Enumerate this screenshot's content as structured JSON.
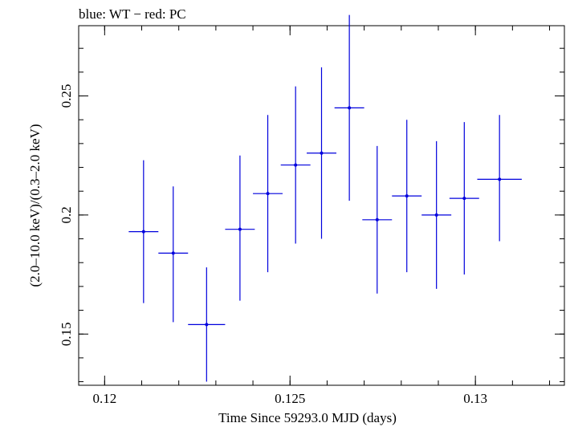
{
  "chart_data": {
    "type": "scatter",
    "title": "blue: WT − red: PC",
    "xlabel": "Time Since 59293.0 MJD (days)",
    "ylabel": "(2.0–10.0 keV)/(0.3–2.0 keV)",
    "xlim": [
      0.1193,
      0.1324
    ],
    "ylim": [
      0.1285,
      0.2795
    ],
    "x_ticks": [
      {
        "value": 0.12,
        "label": "0.12"
      },
      {
        "value": 0.125,
        "label": "0.125"
      },
      {
        "value": 0.13,
        "label": "0.13"
      }
    ],
    "y_ticks": [
      {
        "value": 0.15,
        "label": "0.15"
      },
      {
        "value": 0.2,
        "label": "0.2"
      },
      {
        "value": 0.25,
        "label": "0.25"
      }
    ],
    "x_minor_step": 0.001,
    "y_minor_step": 0.01,
    "series": [
      {
        "color": "#0000dd",
        "points": [
          {
            "x": 0.12105,
            "xerr": 0.0004,
            "y": 0.193,
            "ylo": 0.163,
            "yhi": 0.223
          },
          {
            "x": 0.12185,
            "xerr": 0.0004,
            "y": 0.184,
            "ylo": 0.155,
            "yhi": 0.212
          },
          {
            "x": 0.12275,
            "xerr": 0.0005,
            "y": 0.154,
            "ylo": 0.13,
            "yhi": 0.178
          },
          {
            "x": 0.12365,
            "xerr": 0.0004,
            "y": 0.194,
            "ylo": 0.164,
            "yhi": 0.225
          },
          {
            "x": 0.1244,
            "xerr": 0.0004,
            "y": 0.209,
            "ylo": 0.176,
            "yhi": 0.242
          },
          {
            "x": 0.12515,
            "xerr": 0.0004,
            "y": 0.221,
            "ylo": 0.188,
            "yhi": 0.254
          },
          {
            "x": 0.12585,
            "xerr": 0.0004,
            "y": 0.226,
            "ylo": 0.19,
            "yhi": 0.262
          },
          {
            "x": 0.1266,
            "xerr": 0.0004,
            "y": 0.245,
            "ylo": 0.206,
            "yhi": 0.284
          },
          {
            "x": 0.12735,
            "xerr": 0.0004,
            "y": 0.198,
            "ylo": 0.167,
            "yhi": 0.229
          },
          {
            "x": 0.12815,
            "xerr": 0.0004,
            "y": 0.208,
            "ylo": 0.176,
            "yhi": 0.24
          },
          {
            "x": 0.12895,
            "xerr": 0.0004,
            "y": 0.2,
            "ylo": 0.169,
            "yhi": 0.231
          },
          {
            "x": 0.1297,
            "xerr": 0.0004,
            "y": 0.207,
            "ylo": 0.175,
            "yhi": 0.239
          },
          {
            "x": 0.13065,
            "xerr": 0.0006,
            "y": 0.215,
            "ylo": 0.189,
            "yhi": 0.242
          }
        ]
      }
    ]
  }
}
